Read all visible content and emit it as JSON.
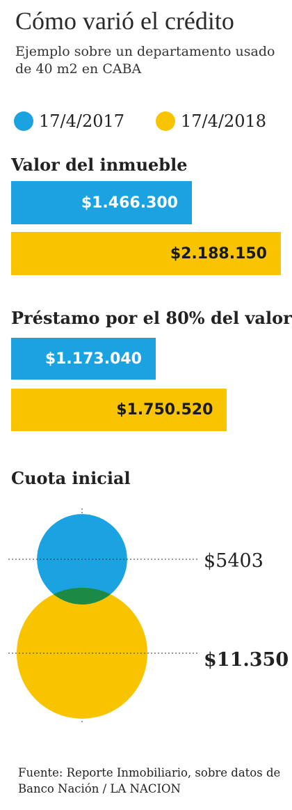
{
  "title": "Cómo varió el crédito",
  "subtitle": "Ejemplo sobre un departamento usado de 40 m2 en CABA",
  "colors": {
    "series_2017": "#1AA3E0",
    "series_2018": "#F8C400",
    "overlap": "#1C8A45"
  },
  "legend": [
    {
      "label": "17/4/2017",
      "color": "#1AA3E0"
    },
    {
      "label": "17/4/2018",
      "color": "#F8C400"
    }
  ],
  "chart_data": [
    {
      "type": "bar",
      "title": "Valor del  inmueble",
      "series": [
        {
          "name": "17/4/2017",
          "value": 1466300,
          "label": "$1.466.300"
        },
        {
          "name": "17/4/2018",
          "value": 2188150,
          "label": "$2.188.150"
        }
      ]
    },
    {
      "type": "bar",
      "title": "Préstamo por el 80% del valor",
      "series": [
        {
          "name": "17/4/2017",
          "value": 1173040,
          "label": "$1.173.040"
        },
        {
          "name": "17/4/2018",
          "value": 1750520,
          "label": "$1.750.520"
        }
      ]
    },
    {
      "type": "bubble",
      "title": "Cuota inicial",
      "series": [
        {
          "name": "17/4/2017",
          "value": 5403,
          "label": "$5403"
        },
        {
          "name": "17/4/2018",
          "value": 11350,
          "label": "$11.350"
        }
      ]
    }
  ],
  "source": "Fuente: Reporte Inmobiliario, sobre datos de Banco Nación / LA NACION"
}
